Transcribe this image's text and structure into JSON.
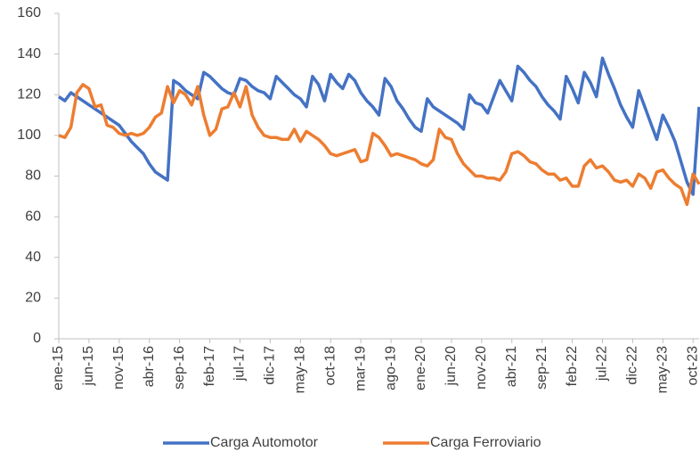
{
  "chart_data": {
    "type": "line",
    "categories": [
      "ene-15",
      null,
      null,
      null,
      null,
      "jun-15",
      null,
      null,
      null,
      null,
      "nov-15",
      null,
      null,
      null,
      null,
      "abr-16",
      null,
      null,
      null,
      null,
      "sep-16",
      null,
      null,
      null,
      null,
      "feb-17",
      null,
      null,
      null,
      null,
      "jul-17",
      null,
      null,
      null,
      null,
      "dic-17",
      null,
      null,
      null,
      null,
      "may-18",
      null,
      null,
      null,
      null,
      "oct-18",
      null,
      null,
      null,
      null,
      "mar-19",
      null,
      null,
      null,
      null,
      "ago-19",
      null,
      null,
      null,
      null,
      "ene-20",
      null,
      null,
      null,
      null,
      "jun-20",
      null,
      null,
      null,
      null,
      "nov-20",
      null,
      null,
      null,
      null,
      "abr-21",
      null,
      null,
      null,
      null,
      "sep-21",
      null,
      null,
      null,
      null,
      "feb-22",
      null,
      null,
      null,
      null,
      "jul-22",
      null,
      null,
      null,
      null,
      "dic-22",
      null,
      null,
      null,
      null,
      "may-23",
      null,
      null,
      null,
      null,
      "oct-23",
      null
    ],
    "series": [
      {
        "name": "Carga Automotor",
        "color": "#4472c4",
        "values": [
          119,
          117,
          121,
          119,
          117,
          115,
          113,
          111,
          109,
          107,
          105,
          101,
          97,
          94,
          91,
          86,
          82,
          80,
          78,
          127,
          125,
          122,
          120,
          118,
          131,
          129,
          126,
          123,
          121,
          120,
          128,
          127,
          124,
          122,
          121,
          118,
          129,
          126,
          123,
          120,
          118,
          114,
          129,
          125,
          117,
          130,
          126,
          123,
          130,
          127,
          121,
          117,
          114,
          110,
          128,
          124,
          117,
          113,
          108,
          104,
          102,
          118,
          114,
          112,
          110,
          108,
          106,
          103,
          120,
          116,
          115,
          111,
          119,
          127,
          122,
          117,
          134,
          131,
          127,
          124,
          119,
          115,
          112,
          108,
          129,
          123,
          116,
          131,
          126,
          119,
          138,
          130,
          123,
          115,
          109,
          104,
          122,
          114,
          106,
          98,
          110,
          104,
          97,
          87,
          77,
          71,
          114
        ]
      },
      {
        "name": "Carga Ferroviario",
        "color": "#ed7d31",
        "values": [
          100,
          99,
          104,
          121,
          125,
          123,
          114,
          115,
          105,
          104,
          101,
          100,
          101,
          100,
          101,
          104,
          109,
          111,
          124,
          116,
          122,
          120,
          115,
          124,
          110,
          100,
          103,
          113,
          114,
          121,
          114,
          124,
          110,
          104,
          100,
          99,
          99,
          98,
          98,
          103,
          97,
          102,
          100,
          98,
          95,
          91,
          90,
          91,
          92,
          93,
          87,
          88,
          101,
          99,
          95,
          90,
          91,
          90,
          89,
          88,
          86,
          85,
          88,
          103,
          99,
          98,
          91,
          86,
          83,
          80,
          80,
          79,
          79,
          78,
          82,
          91,
          92,
          90,
          87,
          86,
          83,
          81,
          81,
          78,
          79,
          75,
          75,
          85,
          88,
          84,
          85,
          82,
          78,
          77,
          78,
          75,
          81,
          79,
          74,
          82,
          83,
          79,
          76,
          74,
          66,
          81,
          76
        ]
      }
    ],
    "ylim": [
      0,
      160
    ],
    "yticks": [
      0,
      20,
      40,
      60,
      80,
      100,
      120,
      140,
      160
    ],
    "legend": "bottom"
  }
}
